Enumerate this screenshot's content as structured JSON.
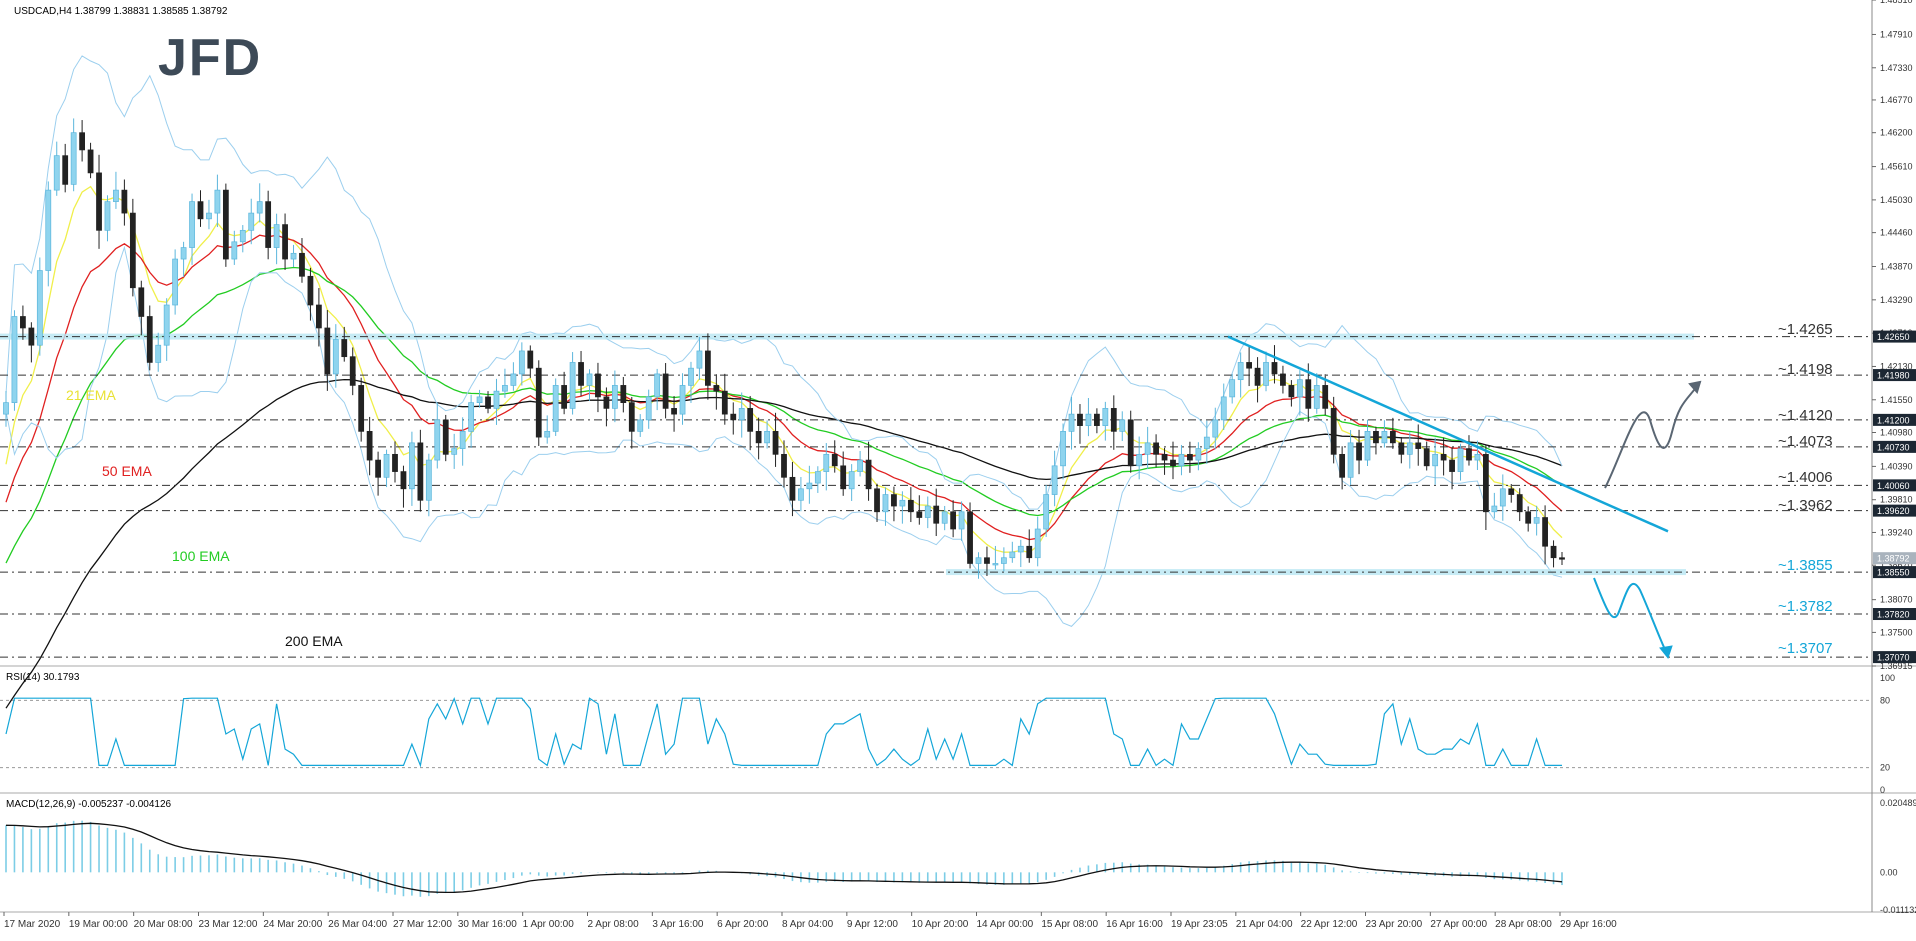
{
  "header": {
    "symbol_line": "USDCAD,H4  1.38799 1.38831 1.38585 1.38792",
    "logo_text": "JFD"
  },
  "colors": {
    "bullish": "#8fd4ee",
    "bearish": "#222222",
    "ema21": "#f0ef4a",
    "ema50": "#e02020",
    "ema100": "#22cc22",
    "ema200": "#111111",
    "bollinger": "#9ccfee",
    "levels": "#6fc8e3",
    "annotation_arrow": "#14a6d8",
    "grey_arrow": "#5a6673",
    "rsi": "#14a6d8",
    "macd_hist": "#7ccde6",
    "macd_signal": "#111111"
  },
  "ema_labels": [
    {
      "id": "21",
      "text": "21 EMA"
    },
    {
      "id": "50",
      "text": "50 EMA"
    },
    {
      "id": "100",
      "text": "100 EMA"
    },
    {
      "id": "200",
      "text": "200 EMA"
    }
  ],
  "level_annotations": [
    "~1.4265",
    "~1.4198",
    "~1.4120",
    "~1.4073",
    "~1.4006",
    "~1.3962",
    "~1.3855",
    "~1.3782",
    "~1.3707"
  ],
  "chart_data": [
    {
      "type": "candlestick",
      "title": "USDCAD,H4  1.38799 1.38831 1.38585 1.38792",
      "ylim": [
        1.36915,
        1.4851
      ],
      "y_ticks": [
        1.4851,
        1.4791,
        1.4733,
        1.4677,
        1.462,
        1.4561,
        1.4503,
        1.4446,
        1.4387,
        1.4329,
        1.4271,
        1.4213,
        1.4155,
        1.4098,
        1.4039,
        1.3981,
        1.3924,
        1.3867,
        1.3807,
        1.375,
        1.36915
      ],
      "price_markers": [
        {
          "value": 1.4265,
          "label": "1.42650",
          "style": "dark"
        },
        {
          "value": 1.4198,
          "label": "1.41980",
          "style": "dark"
        },
        {
          "value": 1.412,
          "label": "1.41200",
          "style": "dark"
        },
        {
          "value": 1.4073,
          "label": "1.40730",
          "style": "dark"
        },
        {
          "value": 1.4006,
          "label": "1.40060",
          "style": "dark"
        },
        {
          "value": 1.3962,
          "label": "1.39620",
          "style": "dark"
        },
        {
          "value": 1.38792,
          "label": "1.38792",
          "style": "grey"
        },
        {
          "value": 1.3855,
          "label": "1.38550",
          "style": "dark"
        },
        {
          "value": 1.3782,
          "label": "1.37820",
          "style": "dark"
        },
        {
          "value": 1.3707,
          "label": "1.37070",
          "style": "dark"
        }
      ],
      "levels": [
        {
          "value": 1.4265,
          "label": "~1.4265",
          "style": "zone"
        },
        {
          "value": 1.4198,
          "label": "~1.4198",
          "style": "dash"
        },
        {
          "value": 1.412,
          "label": "~1.4120",
          "style": "dash"
        },
        {
          "value": 1.4073,
          "label": "~1.4073",
          "style": "dash"
        },
        {
          "value": 1.4006,
          "label": "~1.4006",
          "style": "dash"
        },
        {
          "value": 1.3962,
          "label": "~1.3962",
          "style": "dash"
        },
        {
          "value": 1.3855,
          "label": "~1.3855",
          "style": "zone"
        },
        {
          "value": 1.3782,
          "label": "~1.3782",
          "style": "dash"
        },
        {
          "value": 1.3707,
          "label": "~1.3707",
          "style": "dash"
        }
      ],
      "x_labels": [
        "17 Mar 2020",
        "19 Mar 00:00",
        "20 Mar 08:00",
        "23 Mar 12:00",
        "24 Mar 20:00",
        "26 Mar 04:00",
        "27 Mar 12:00",
        "30 Mar 16:00",
        "1 Apr 00:00",
        "2 Apr 08:00",
        "3 Apr 16:00",
        "6 Apr 20:00",
        "8 Apr 04:00",
        "9 Apr 12:00",
        "10 Apr 20:00",
        "14 Apr 00:00",
        "15 Apr 08:00",
        "16 Apr 16:00",
        "19 Apr 23:05",
        "21 Apr 04:00",
        "22 Apr 12:00",
        "23 Apr 20:00",
        "27 Apr 00:00",
        "28 Apr 08:00",
        "29 Apr 16:00"
      ],
      "close_path": [
        1.415,
        1.43,
        1.428,
        1.425,
        1.438,
        1.452,
        1.458,
        1.453,
        1.462,
        1.459,
        1.455,
        1.445,
        1.45,
        1.452,
        1.448,
        1.435,
        1.43,
        1.422,
        1.425,
        1.432,
        1.44,
        1.442,
        1.45,
        1.447,
        1.448,
        1.452,
        1.44,
        1.443,
        1.445,
        1.448,
        1.45,
        1.442,
        1.446,
        1.44,
        1.441,
        1.437,
        1.432,
        1.428,
        1.42,
        1.426,
        1.423,
        1.418,
        1.41,
        1.405,
        1.402,
        1.406,
        1.403,
        1.4,
        1.408,
        1.398,
        1.405,
        1.412,
        1.406,
        1.407,
        1.41,
        1.415,
        1.416,
        1.414,
        1.417,
        1.418,
        1.42,
        1.424,
        1.421,
        1.409,
        1.41,
        1.418,
        1.414,
        1.422,
        1.418,
        1.42,
        1.416,
        1.414,
        1.418,
        1.415,
        1.41,
        1.412,
        1.416,
        1.42,
        1.414,
        1.413,
        1.418,
        1.421,
        1.424,
        1.418,
        1.417,
        1.413,
        1.412,
        1.414,
        1.41,
        1.408,
        1.41,
        1.406,
        1.402,
        1.398,
        1.4,
        1.401,
        1.403,
        1.406,
        1.404,
        1.4,
        1.403,
        1.405,
        1.4,
        1.396,
        1.399,
        1.397,
        1.398,
        1.396,
        1.395,
        1.397,
        1.394,
        1.396,
        1.393,
        1.396,
        1.387,
        1.388,
        1.387,
        1.387,
        1.388,
        1.389,
        1.39,
        1.388,
        1.393,
        1.399,
        1.404,
        1.41,
        1.413,
        1.411,
        1.413,
        1.411,
        1.414,
        1.41,
        1.412,
        1.404,
        1.406,
        1.408,
        1.406,
        1.405,
        1.404,
        1.406,
        1.405,
        1.407,
        1.409,
        1.412,
        1.416,
        1.419,
        1.422,
        1.421,
        1.418,
        1.422,
        1.42,
        1.418,
        1.416,
        1.419,
        1.414,
        1.418,
        1.414,
        1.406,
        1.402,
        1.408,
        1.405,
        1.41,
        1.408,
        1.41,
        1.408,
        1.406,
        1.408,
        1.407,
        1.404,
        1.406,
        1.405,
        1.403,
        1.407,
        1.405,
        1.406,
        1.396,
        1.397,
        1.4,
        1.399,
        1.396,
        1.394,
        1.395,
        1.39,
        1.388,
        1.3879
      ],
      "rsi": {
        "label": "RSI(14) 30.1793",
        "ylim": [
          0,
          100
        ],
        "levels": [
          80,
          20
        ],
        "ticks": [
          100,
          80,
          20,
          0
        ]
      },
      "macd": {
        "label": "MACD(12,26,9) -0.005237 -0.004126",
        "ylim": [
          -0.011132,
          0.020489
        ],
        "ticks": [
          0.020489,
          0.0,
          -0.011132
        ],
        "tick_labels": [
          "0.020489",
          "0.00",
          "-0.011132"
        ]
      }
    }
  ]
}
